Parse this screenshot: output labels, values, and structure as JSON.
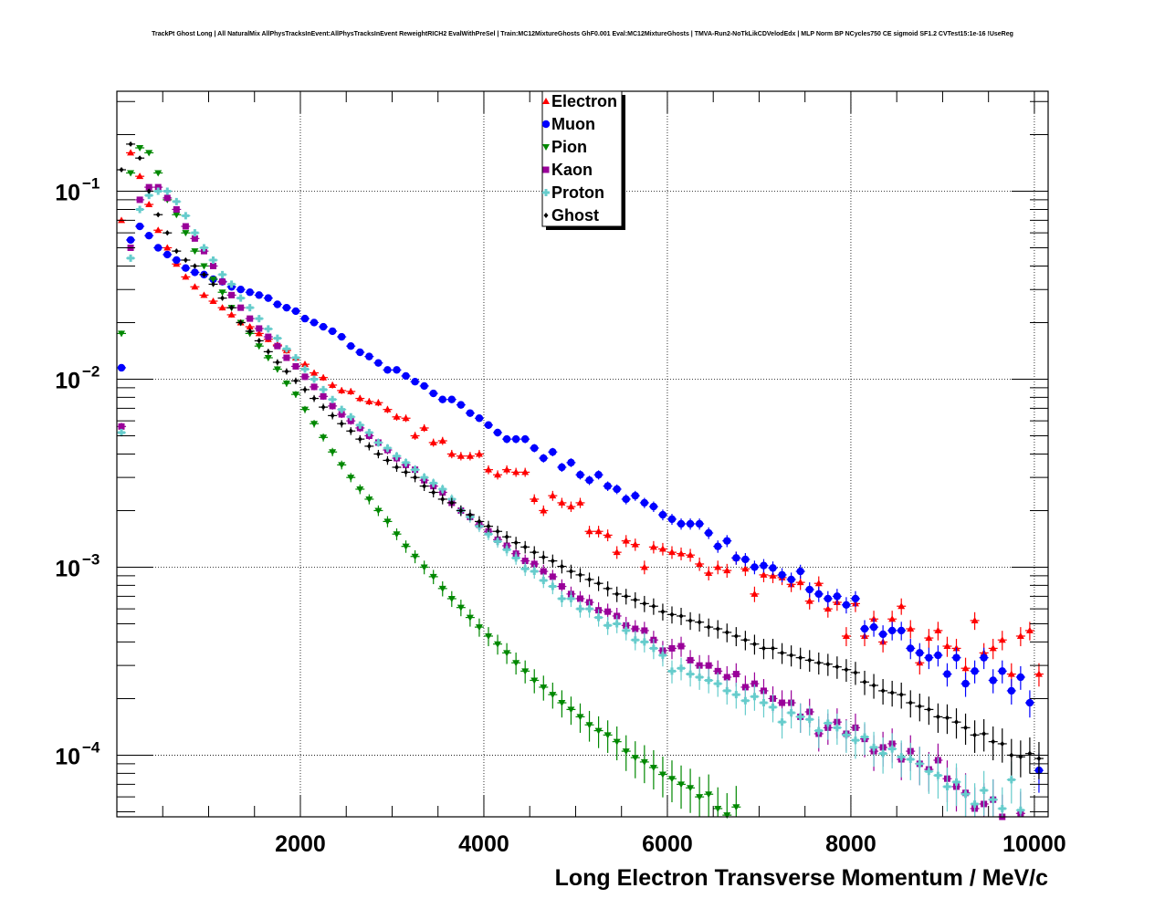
{
  "chart_data": {
    "type": "scatter",
    "title": "TrackPt Ghost Long | All NaturalMix AllPhysTracksInEvent:AllPhysTracksInEvent ReweightRICH2 EvalWithPreSel | Train:MC12MixtureGhosts GhF0.001 Eval:MC12MixtureGhosts | TMVA-Run2-NoTkLikCDVelodEdx | MLP Norm BP NCycles750 CE sigmoid SF1.2 CVTest15:1e-16 !UseReg",
    "xlabel": "Long Electron Transverse Momentum / MeV/c",
    "ylabel": "",
    "xlim": [
      0,
      10150
    ],
    "ylim": [
      4.7e-05,
      0.34
    ],
    "yscale": "log",
    "grid": true,
    "legend_position": "top-center",
    "x_ticks": [
      2000,
      4000,
      6000,
      8000,
      10000
    ],
    "x_tick_labels": [
      "2000",
      "4000",
      "6000",
      "8000",
      "10000"
    ],
    "y_ticks": [
      0.1,
      0.01,
      0.001,
      0.0001
    ],
    "y_tick_labels": [
      {
        "base": "10",
        "exp": "−1"
      },
      {
        "base": "10",
        "exp": "−2"
      },
      {
        "base": "10",
        "exp": "−3"
      },
      {
        "base": "10",
        "exp": "−4"
      }
    ],
    "bin_width": 100,
    "x_start": 50,
    "series": [
      {
        "name": "Electron",
        "color": "#ff0000",
        "marker": "triangle-up",
        "errors": true,
        "values": [
          0.07,
          0.16,
          0.12,
          0.085,
          0.062,
          0.05,
          0.041,
          0.035,
          0.031,
          0.028,
          0.026,
          0.024,
          0.022,
          0.02,
          0.019,
          0.0175,
          0.0163,
          0.0152,
          0.0142,
          0.013,
          0.012,
          0.0108,
          0.0102,
          0.0093,
          0.0087,
          0.0086,
          0.0079,
          0.0076,
          0.0075,
          0.0069,
          0.0063,
          0.0062,
          0.005,
          0.0055,
          0.0046,
          0.0047,
          0.004,
          0.0039,
          0.0039,
          0.004,
          0.0033,
          0.0031,
          0.0033,
          0.0032,
          0.0032,
          0.0023,
          0.002,
          0.0024,
          0.0022,
          0.0021,
          0.0022,
          0.00155,
          0.00155,
          0.00148,
          0.0012,
          0.00138,
          0.00132,
          0.001,
          0.00128,
          0.00125,
          0.0012,
          0.00118,
          0.00116,
          0.00104,
          0.00093,
          0.001,
          0.00096,
          0.00112,
          0.00098,
          0.00072,
          0.00091,
          0.0009,
          0.00088,
          0.00081,
          0.00083,
          0.00066,
          0.00082,
          0.0006,
          0.00065,
          0.00043,
          0.00064,
          0.00043,
          0.00053,
          0.0004,
          0.00053,
          0.00062,
          0.00047,
          0.00031,
          0.00042,
          0.00046,
          0.00038,
          0.00037,
          0.00029,
          0.00052,
          0.00035,
          0.00037,
          0.00041,
          0.00027,
          0.00043,
          0.00046,
          0.00027
        ]
      },
      {
        "name": "Muon",
        "color": "#0000ff",
        "marker": "circle",
        "errors": true,
        "values": [
          0.0115,
          0.055,
          0.065,
          0.058,
          0.05,
          0.046,
          0.043,
          0.039,
          0.037,
          0.036,
          0.034,
          0.033,
          0.031,
          0.03,
          0.029,
          0.028,
          0.027,
          0.025,
          0.024,
          0.023,
          0.021,
          0.02,
          0.019,
          0.018,
          0.0168,
          0.015,
          0.0139,
          0.0132,
          0.0122,
          0.0112,
          0.0112,
          0.0104,
          0.0097,
          0.0092,
          0.0084,
          0.0078,
          0.0078,
          0.0073,
          0.0066,
          0.0062,
          0.0057,
          0.0052,
          0.0048,
          0.0048,
          0.0048,
          0.0043,
          0.0038,
          0.0041,
          0.0034,
          0.0036,
          0.0031,
          0.0029,
          0.0031,
          0.0027,
          0.0026,
          0.0023,
          0.0024,
          0.0022,
          0.0021,
          0.0019,
          0.0018,
          0.0017,
          0.0017,
          0.0017,
          0.00152,
          0.00129,
          0.00138,
          0.00112,
          0.0011,
          0.001,
          0.00102,
          0.00099,
          0.00091,
          0.00086,
          0.00095,
          0.00076,
          0.00072,
          0.00068,
          0.0007,
          0.00063,
          0.00068,
          0.00047,
          0.00048,
          0.00044,
          0.00046,
          0.00046,
          0.00037,
          0.00035,
          0.00033,
          0.00034,
          0.00027,
          0.00033,
          0.00024,
          0.00028,
          0.00033,
          0.00025,
          0.00028,
          0.00022,
          0.00026,
          0.00019,
          8.3e-05
        ]
      },
      {
        "name": "Pion",
        "color": "#008800",
        "marker": "triangle-down",
        "errors": true,
        "values": [
          0.0175,
          0.125,
          0.17,
          0.16,
          0.125,
          0.09,
          0.075,
          0.06,
          0.048,
          0.04,
          0.034,
          0.029,
          0.024,
          0.02,
          0.0175,
          0.015,
          0.013,
          0.0113,
          0.0095,
          0.0083,
          0.0069,
          0.0058,
          0.0049,
          0.0041,
          0.0035,
          0.003,
          0.0026,
          0.0023,
          0.002,
          0.00175,
          0.0015,
          0.00129,
          0.00114,
          0.001,
          0.00089,
          0.00077,
          0.00068,
          0.00061,
          0.00054,
          0.00048,
          0.00043,
          0.00039,
          0.00035,
          0.00031,
          0.00028,
          0.00025,
          0.00023,
          0.00021,
          0.00019,
          0.000175,
          0.00016,
          0.000145,
          0.000135,
          0.000128,
          0.000118,
          0.000105,
          9.7e-05,
          9.2e-05,
          8.6e-05,
          7.9e-05,
          7.5e-05,
          7e-05,
          6.7e-05,
          6e-05,
          6.2e-05,
          5.2e-05,
          4.8e-05,
          5.3e-05,
          null,
          null,
          null,
          null,
          null,
          null,
          null,
          null,
          null,
          null,
          null,
          null,
          null,
          null,
          null,
          null,
          null,
          null,
          null,
          null,
          null,
          null,
          null,
          null,
          null,
          null,
          null,
          null,
          null,
          null,
          null,
          null,
          null
        ]
      },
      {
        "name": "Kaon",
        "color": "#990099",
        "marker": "square",
        "errors": true,
        "values": [
          0.0056,
          0.05,
          0.09,
          0.105,
          0.105,
          0.092,
          0.08,
          0.065,
          0.056,
          0.048,
          0.04,
          0.033,
          0.028,
          0.024,
          0.021,
          0.0186,
          0.0168,
          0.015,
          0.013,
          0.0117,
          0.0103,
          0.0091,
          0.0081,
          0.0072,
          0.0065,
          0.006,
          0.0055,
          0.005,
          0.0046,
          0.0042,
          0.0038,
          0.0035,
          0.0033,
          0.0029,
          0.0027,
          0.0025,
          0.0022,
          0.002,
          0.00185,
          0.00168,
          0.00155,
          0.0014,
          0.0013,
          0.00118,
          0.00108,
          0.00104,
          0.00095,
          0.00089,
          0.00079,
          0.00072,
          0.00068,
          0.00065,
          0.00059,
          0.00058,
          0.00055,
          0.00049,
          0.00047,
          0.00046,
          0.00041,
          0.00036,
          0.00037,
          0.00038,
          0.00032,
          0.0003,
          0.0003,
          0.00028,
          0.00026,
          0.00027,
          0.00023,
          0.00024,
          0.00022,
          0.0002,
          0.00019,
          0.00019,
          0.00016,
          0.00017,
          0.00013,
          0.00014,
          0.00015,
          0.00013,
          0.00014,
          0.000122,
          0.000105,
          0.00011,
          0.000115,
          9.5e-05,
          0.000105,
          9e-05,
          8.4e-05,
          9.4e-05,
          7.5e-05,
          6.8e-05,
          6.3e-05,
          5.2e-05,
          5.5e-05,
          5.8e-05,
          4.7e-05,
          null,
          4.9e-05,
          null,
          null
        ]
      },
      {
        "name": "Proton",
        "color": "#66cccc",
        "marker": "cross",
        "errors": true,
        "values": [
          0.0052,
          0.044,
          0.08,
          0.095,
          0.1,
          0.1,
          0.088,
          0.074,
          0.06,
          0.05,
          0.043,
          0.036,
          0.032,
          0.027,
          0.024,
          0.021,
          0.0185,
          0.0165,
          0.0145,
          0.013,
          0.0113,
          0.01,
          0.0088,
          0.0078,
          0.0069,
          0.0063,
          0.0057,
          0.0052,
          0.0046,
          0.0043,
          0.0039,
          0.0036,
          0.0033,
          0.003,
          0.0028,
          0.0026,
          0.0023,
          0.002,
          0.00185,
          0.00165,
          0.0015,
          0.00137,
          0.00124,
          0.00112,
          0.00098,
          0.00095,
          0.00085,
          0.00079,
          0.00068,
          0.00068,
          0.0006,
          0.0006,
          0.00054,
          0.00049,
          0.0005,
          0.00046,
          0.00041,
          0.0004,
          0.00037,
          0.00034,
          0.00028,
          0.00029,
          0.00027,
          0.00026,
          0.00025,
          0.00024,
          0.00022,
          0.00021,
          0.000195,
          0.000205,
          0.00019,
          0.00018,
          0.00015,
          0.000168,
          0.00016,
          0.000155,
          0.000135,
          0.000148,
          0.00014,
          0.000128,
          0.00012,
          0.000125,
          0.00011,
          0.000102,
          0.000108,
          9.8e-05,
          9.5e-05,
          9e-05,
          8.2e-05,
          7.8e-05,
          6.8e-05,
          7.2e-05,
          6.2e-05,
          5.5e-05,
          6.5e-05,
          5.8e-05,
          5.2e-05,
          7.4e-05,
          5.1e-05,
          null,
          null
        ]
      },
      {
        "name": "Ghost",
        "color": "#000000",
        "marker": "diamond",
        "errors": true,
        "values": [
          0.13,
          0.178,
          0.15,
          0.1,
          0.075,
          0.06,
          0.048,
          0.043,
          0.04,
          0.036,
          0.032,
          0.027,
          0.024,
          0.02,
          0.018,
          0.016,
          0.014,
          0.0123,
          0.011,
          0.0098,
          0.0088,
          0.0079,
          0.0071,
          0.0064,
          0.0058,
          0.0053,
          0.0048,
          0.0044,
          0.004,
          0.0037,
          0.0034,
          0.0032,
          0.003,
          0.0027,
          0.0025,
          0.0023,
          0.0022,
          0.002,
          0.0019,
          0.00175,
          0.00165,
          0.00155,
          0.00145,
          0.00135,
          0.00128,
          0.0012,
          0.00113,
          0.00108,
          0.00101,
          0.00095,
          0.00091,
          0.00086,
          0.00082,
          0.00077,
          0.00072,
          0.0007,
          0.00067,
          0.00064,
          0.00062,
          0.00058,
          0.00056,
          0.00055,
          0.00052,
          0.00051,
          0.00048,
          0.00047,
          0.00045,
          0.00043,
          0.00041,
          0.00039,
          0.00037,
          0.00037,
          0.00035,
          0.00034,
          0.00033,
          0.00032,
          0.00031,
          0.000305,
          0.000295,
          0.000285,
          0.000275,
          0.000245,
          0.000235,
          0.00022,
          0.000215,
          0.00021,
          0.00019,
          0.000182,
          0.000175,
          0.00016,
          0.000158,
          0.00015,
          0.00014,
          0.000128,
          0.00013,
          0.000118,
          0.000115,
          0.0001,
          9.8e-05,
          0.000102,
          9.6e-05
        ]
      }
    ]
  }
}
